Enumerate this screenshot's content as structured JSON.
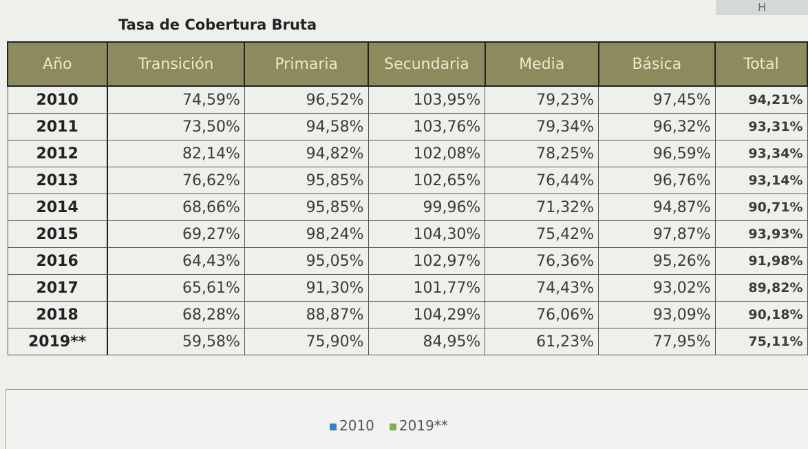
{
  "sheet": {
    "column_letter": "H",
    "title": "Tasa de Cobertura Bruta",
    "headers": [
      "Año",
      "Transición",
      "Primaria",
      "Secundaria",
      "Media",
      "Básica",
      "Total"
    ],
    "rows": [
      [
        "2010",
        "74,59%",
        "96,52%",
        "103,95%",
        "79,23%",
        "97,45%",
        "94,21%"
      ],
      [
        "2011",
        "73,50%",
        "94,58%",
        "103,76%",
        "79,34%",
        "96,32%",
        "93,31%"
      ],
      [
        "2012",
        "82,14%",
        "94,82%",
        "102,08%",
        "78,25%",
        "96,59%",
        "93,34%"
      ],
      [
        "2013",
        "76,62%",
        "95,85%",
        "102,65%",
        "76,44%",
        "96,76%",
        "93,14%"
      ],
      [
        "2014",
        "68,66%",
        "95,85%",
        "99,96%",
        "71,32%",
        "94,87%",
        "90,71%"
      ],
      [
        "2015",
        "69,27%",
        "98,24%",
        "104,30%",
        "75,42%",
        "97,87%",
        "93,93%"
      ],
      [
        "2016",
        "64,43%",
        "95,05%",
        "102,97%",
        "76,36%",
        "95,26%",
        "91,98%"
      ],
      [
        "2017",
        "65,61%",
        "91,30%",
        "101,77%",
        "74,43%",
        "93,02%",
        "89,82%"
      ],
      [
        "2018",
        "68,28%",
        "88,87%",
        "104,29%",
        "76,06%",
        "93,09%",
        "90,18%"
      ],
      [
        "2019**",
        "59,58%",
        "75,90%",
        "84,95%",
        "61,23%",
        "77,95%",
        "75,11%"
      ]
    ],
    "legend": [
      {
        "label": "2010",
        "color": "#3a7fc4"
      },
      {
        "label": "2019**",
        "color": "#7fb04a"
      }
    ]
  }
}
